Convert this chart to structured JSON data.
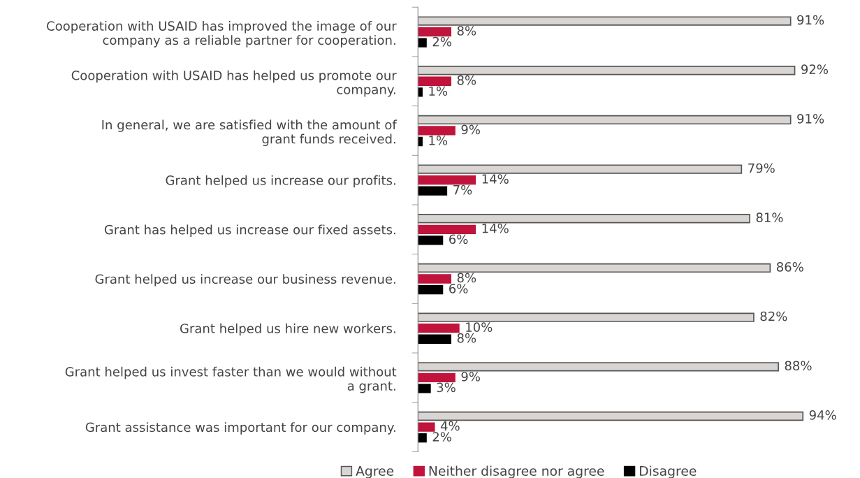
{
  "chart_data": {
    "type": "bar",
    "orientation": "horizontal",
    "data_labels": false,
    "legend": "bottom",
    "categories": [
      "Cooperation with USAID has improved the image of our company as a reliable partner for cooperation.",
      "Cooperation with USAID has helped us promote our company.",
      "In general, we are satisfied with the amount of grant funds received.",
      "Grant helped us increase our profits.",
      "Grant has helped us increase our fixed assets.",
      "Grant helped us increase our business revenue.",
      "Grant helped us hire new workers.",
      "Grant helped us invest faster than we would without a grant.",
      "Grant assistance was important for our company."
    ],
    "series": [
      {
        "name": "Agree",
        "color": "#d9d5d2",
        "values": [
          91,
          92,
          91,
          79,
          81,
          86,
          82,
          88,
          94
        ],
        "value_labels": [
          "91%",
          "92%",
          "91%",
          "79%",
          "81%",
          "86%",
          "82%",
          "88%",
          "94%"
        ]
      },
      {
        "name": "Neither disagree nor agree",
        "color": "#c0143c",
        "values": [
          8,
          8,
          9,
          14,
          14,
          8,
          10,
          9,
          4
        ],
        "value_labels": [
          "8%",
          "8%",
          "9%",
          "14%",
          "14%",
          "8%",
          "10%",
          "9%",
          "4%"
        ]
      },
      {
        "name": "Disagree",
        "color": "#000000",
        "values": [
          2,
          1,
          1,
          7,
          6,
          6,
          8,
          3,
          2
        ],
        "value_labels": [
          "2%",
          "1%",
          "1%",
          "7%",
          "6%",
          "6%",
          "8%",
          "3%",
          "2%"
        ]
      }
    ]
  }
}
